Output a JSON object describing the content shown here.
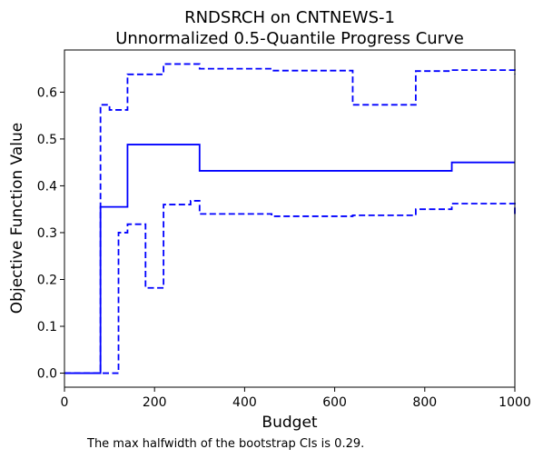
{
  "chart_data": {
    "type": "line",
    "title": "RNDSRCH on CNTNEWS-1",
    "subtitle": "Unnormalized 0.5-Quantile Progress Curve",
    "xlabel": "Budget",
    "ylabel": "Objective Function Value",
    "xlim": [
      0,
      1000
    ],
    "ylim": [
      -0.03,
      0.69
    ],
    "xticks": [
      0,
      200,
      400,
      600,
      800,
      1000
    ],
    "yticks": [
      0.0,
      0.1,
      0.2,
      0.3,
      0.4,
      0.5,
      0.6
    ],
    "xtick_labels": [
      "0",
      "200",
      "400",
      "600",
      "800",
      "1000"
    ],
    "ytick_labels": [
      "0.0",
      "0.1",
      "0.2",
      "0.3",
      "0.4",
      "0.5",
      "0.6"
    ],
    "grid": false,
    "legend": null,
    "color": "#0000ff",
    "series": [
      {
        "style": "solid",
        "steps": [
          [
            0,
            0.0
          ],
          [
            80,
            0.355
          ],
          [
            140,
            0.488
          ],
          [
            300,
            0.432
          ],
          [
            860,
            0.45
          ],
          [
            1000,
            0.45
          ]
        ]
      },
      {
        "style": "dashed",
        "steps": [
          [
            0,
            0.0
          ],
          [
            80,
            0.573
          ],
          [
            100,
            0.562
          ],
          [
            140,
            0.638
          ],
          [
            220,
            0.66
          ],
          [
            300,
            0.65
          ],
          [
            460,
            0.646
          ],
          [
            640,
            0.573
          ],
          [
            780,
            0.645
          ],
          [
            860,
            0.647
          ],
          [
            1000,
            0.638
          ]
        ]
      },
      {
        "style": "dashed",
        "steps": [
          [
            0,
            0.0
          ],
          [
            120,
            0.3
          ],
          [
            140,
            0.318
          ],
          [
            180,
            0.182
          ],
          [
            220,
            0.36
          ],
          [
            280,
            0.368
          ],
          [
            300,
            0.34
          ],
          [
            460,
            0.335
          ],
          [
            640,
            0.337
          ],
          [
            780,
            0.35
          ],
          [
            860,
            0.362
          ],
          [
            1000,
            0.34
          ]
        ]
      }
    ],
    "footnote": "The max halfwidth of the bootstrap CIs is 0.29."
  }
}
